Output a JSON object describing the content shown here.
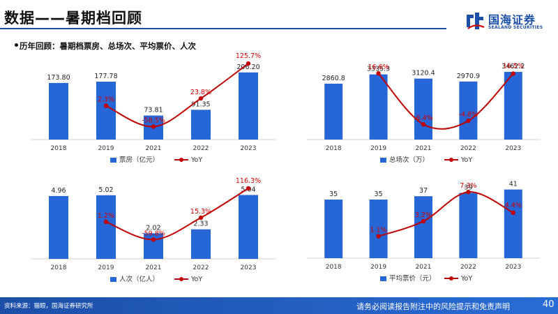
{
  "header": {
    "title": "数据——暑期档回顾",
    "logo_cn": "国海证券",
    "logo_en": "SEALAND SECURITIES"
  },
  "section": {
    "subtitle": "历年回顾：暑期档票房、总场次、平均票价、人次"
  },
  "colors": {
    "bar": "#2666d6",
    "line": "#c00000",
    "label_red": "#d40000",
    "brand": "#1b4fa8"
  },
  "chart_data": [
    {
      "type": "bar",
      "categories": [
        "2018",
        "2019",
        "2021",
        "2022",
        "2023"
      ],
      "values": [
        173.8,
        177.78,
        73.81,
        91.35,
        206.2
      ],
      "value_labels": [
        "173.80",
        "177.78",
        "73.81",
        "91.35",
        "206.20"
      ],
      "secondary_line": {
        "name": "YoY",
        "values": [
          null,
          2.3,
          -58.5,
          23.8,
          125.7
        ],
        "labels": [
          "",
          "2.3%",
          "-58.5%",
          "23.8%",
          "125.7%"
        ]
      },
      "bar_series_name": "票房（亿元）",
      "line_series_name": "YoY",
      "ylim": [
        0,
        240
      ],
      "yoy_lim": [
        -80,
        140
      ]
    },
    {
      "type": "bar",
      "categories": [
        "2018",
        "2019",
        "2021",
        "2022",
        "2023"
      ],
      "values": [
        2860.8,
        3335.3,
        3120.4,
        2970.9,
        3462.2
      ],
      "value_labels": [
        "2860.8",
        "3335.3",
        "3120.4",
        "2970.9",
        "3462.2"
      ],
      "secondary_line": {
        "name": "YoY",
        "values": [
          null,
          16.6,
          -6.4,
          -4.8,
          16.5
        ],
        "labels": [
          "",
          "16.6%",
          "-6.4%",
          "-4.8%",
          "16.5%"
        ]
      },
      "bar_series_name": "总场次（万）",
      "line_series_name": "YoY",
      "ylim": [
        0,
        4000
      ],
      "yoy_lim": [
        -12,
        22
      ]
    },
    {
      "type": "bar",
      "categories": [
        "2018",
        "2019",
        "2021",
        "2022",
        "2023"
      ],
      "values": [
        4.96,
        5.02,
        2.02,
        2.33,
        5.04
      ],
      "value_labels": [
        "4.96",
        "5.02",
        "2.02",
        "2.33",
        "5.04"
      ],
      "secondary_line": {
        "name": "YoY",
        "values": [
          null,
          1.2,
          -59.8,
          15.3,
          116.3
        ],
        "labels": [
          "",
          "1.2%",
          "-59.8%",
          "15.3%",
          "116.3%"
        ]
      },
      "bar_series_name": "人次（亿人）",
      "line_series_name": "YoY",
      "ylim": [
        0,
        6
      ],
      "yoy_lim": [
        -90,
        140
      ]
    },
    {
      "type": "bar",
      "categories": [
        "2018",
        "2019",
        "2021",
        "2022",
        "2023"
      ],
      "values": [
        35,
        35,
        37,
        39,
        41
      ],
      "value_labels": [
        "35",
        "35",
        "37",
        "39",
        "41"
      ],
      "secondary_line": {
        "name": "YoY",
        "values": [
          null,
          1.1,
          3.2,
          7.3,
          4.4
        ],
        "labels": [
          "",
          "1.1%",
          "3.2%",
          "7.3%",
          "4.4%"
        ]
      },
      "bar_series_name": "平均票价（元）",
      "line_series_name": "YoY",
      "ylim": [
        0,
        45
      ],
      "yoy_lim": [
        -1,
        8
      ]
    }
  ],
  "footer": {
    "source": "资料来源：猫眼，国海证券研究所",
    "disclaimer": "请务必阅读报告附注中的风险提示和免责声明",
    "page": "40"
  }
}
